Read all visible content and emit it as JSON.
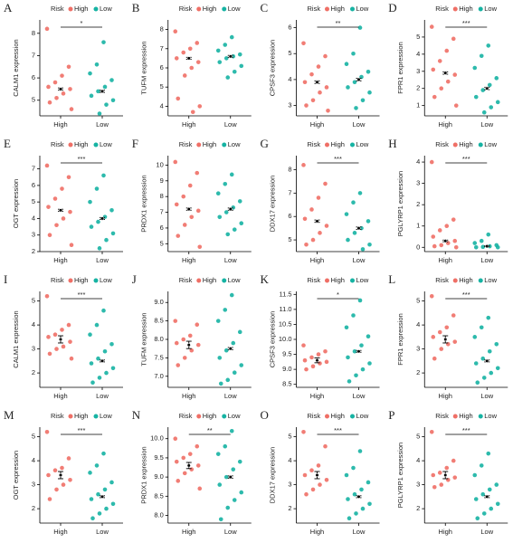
{
  "chart_data": [
    {
      "type": "strip",
      "panel": "A",
      "y_label": "CALM1 expression",
      "legend_title": "Risk",
      "categories": [
        "High",
        "Low"
      ],
      "significance": "*",
      "ylim": [
        4.3,
        8.6
      ],
      "yticks": [
        5,
        6,
        7,
        8
      ],
      "series": [
        {
          "name": "High",
          "color": "#ef6f66",
          "values": [
            8.2,
            6.5,
            6.1,
            5.8,
            5.6,
            5.5,
            5.3,
            5.1,
            4.9,
            4.6
          ],
          "mean": 5.5,
          "error": 0.05
        },
        {
          "name": "Low",
          "color": "#16b3a3",
          "values": [
            7.6,
            6.6,
            6.2,
            5.9,
            5.6,
            5.4,
            5.2,
            5.0,
            4.8,
            4.4
          ],
          "mean": 5.4,
          "error": 0.05
        }
      ]
    },
    {
      "type": "strip",
      "panel": "B",
      "y_label": "TUFM expression",
      "legend_title": "Risk",
      "categories": [
        "High",
        "Low"
      ],
      "ylim": [
        3.5,
        8.5
      ],
      "yticks": [
        4,
        5,
        6,
        7,
        8
      ],
      "series": [
        {
          "name": "High",
          "color": "#ef6f66",
          "values": [
            7.9,
            7.3,
            7.0,
            6.8,
            6.5,
            6.3,
            6.0,
            5.6,
            4.4,
            4.0,
            3.7
          ],
          "mean": 6.5,
          "error": 0.05
        },
        {
          "name": "Low",
          "color": "#16b3a3",
          "values": [
            7.6,
            7.2,
            6.9,
            6.7,
            6.6,
            6.5,
            6.3,
            6.1,
            5.8,
            5.5
          ],
          "mean": 6.6,
          "error": 0.05
        }
      ]
    },
    {
      "type": "strip",
      "panel": "C",
      "y_label": "CPSF3 expression",
      "legend_title": "Risk",
      "categories": [
        "High",
        "Low"
      ],
      "significance": "**",
      "ylim": [
        2.6,
        6.3
      ],
      "yticks": [
        3,
        4,
        5,
        6
      ],
      "series": [
        {
          "name": "High",
          "color": "#ef6f66",
          "values": [
            5.4,
            4.9,
            4.5,
            4.2,
            3.9,
            3.7,
            3.5,
            3.2,
            3.0,
            2.8
          ],
          "mean": 3.9,
          "error": 0.05
        },
        {
          "name": "Low",
          "color": "#16b3a3",
          "values": [
            6.0,
            5.0,
            4.6,
            4.3,
            4.1,
            3.9,
            3.7,
            3.5,
            3.2,
            2.9
          ],
          "mean": 4.0,
          "error": 0.05
        }
      ]
    },
    {
      "type": "strip",
      "panel": "D",
      "y_label": "FPR1 expression",
      "legend_title": "Risk",
      "categories": [
        "High",
        "Low"
      ],
      "significance": "***",
      "ylim": [
        0.4,
        6
      ],
      "yticks": [
        1,
        2,
        3,
        4,
        5
      ],
      "series": [
        {
          "name": "High",
          "color": "#ef6f66",
          "values": [
            5.6,
            4.9,
            4.2,
            3.6,
            3.1,
            2.8,
            2.4,
            2.0,
            1.5,
            1.0
          ],
          "mean": 2.9,
          "error": 0.07
        },
        {
          "name": "Low",
          "color": "#16b3a3",
          "values": [
            4.5,
            3.9,
            3.2,
            2.6,
            2.2,
            1.9,
            1.5,
            1.2,
            0.9,
            0.6
          ],
          "mean": 2.0,
          "error": 0.07
        }
      ]
    },
    {
      "type": "strip",
      "panel": "E",
      "y_label": "OGT expression",
      "legend_title": "Risk",
      "categories": [
        "High",
        "Low"
      ],
      "significance": "***",
      "ylim": [
        2,
        7.8
      ],
      "yticks": [
        2,
        3,
        4,
        5,
        6,
        7
      ],
      "series": [
        {
          "name": "High",
          "color": "#ef6f66",
          "values": [
            7.2,
            6.5,
            5.8,
            5.2,
            4.7,
            4.4,
            4.0,
            3.6,
            3.0,
            2.4
          ],
          "mean": 4.5,
          "error": 0.06
        },
        {
          "name": "Low",
          "color": "#16b3a3",
          "values": [
            6.6,
            5.8,
            5.0,
            4.5,
            4.1,
            3.8,
            3.5,
            3.1,
            2.7,
            2.2
          ],
          "mean": 4.0,
          "error": 0.06
        }
      ]
    },
    {
      "type": "strip",
      "panel": "F",
      "y_label": "PRDX1 expression",
      "legend_title": "Risk",
      "categories": [
        "High",
        "Low"
      ],
      "ylim": [
        4.5,
        10.6
      ],
      "yticks": [
        5,
        6,
        7,
        8,
        9,
        10
      ],
      "series": [
        {
          "name": "High",
          "color": "#ef6f66",
          "values": [
            10.2,
            9.5,
            8.7,
            8.0,
            7.5,
            7.1,
            6.7,
            6.2,
            5.5,
            4.8
          ],
          "mean": 7.2,
          "error": 0.07
        },
        {
          "name": "Low",
          "color": "#16b3a3",
          "values": [
            9.4,
            8.8,
            8.2,
            7.7,
            7.3,
            7.0,
            6.7,
            6.3,
            5.9,
            5.6
          ],
          "mean": 7.2,
          "error": 0.07
        }
      ]
    },
    {
      "type": "strip",
      "panel": "G",
      "y_label": "DDX17 expression",
      "legend_title": "Risk",
      "categories": [
        "High",
        "Low"
      ],
      "significance": "***",
      "ylim": [
        4.5,
        8.6
      ],
      "yticks": [
        5,
        6,
        7,
        8
      ],
      "series": [
        {
          "name": "High",
          "color": "#ef6f66",
          "values": [
            8.2,
            7.4,
            6.8,
            6.3,
            5.9,
            5.6,
            5.3,
            5.0,
            4.8
          ],
          "mean": 5.8,
          "error": 0.05
        },
        {
          "name": "Low",
          "color": "#16b3a3",
          "values": [
            7.0,
            6.6,
            6.1,
            5.8,
            5.5,
            5.3,
            5.0,
            4.8,
            4.6
          ],
          "mean": 5.5,
          "error": 0.05
        }
      ]
    },
    {
      "type": "strip",
      "panel": "H",
      "y_label": "PGLYRP1 expression",
      "legend_title": "Risk",
      "categories": [
        "High",
        "Low"
      ],
      "significance": "***",
      "ylim": [
        -0.2,
        4.3
      ],
      "yticks": [
        0,
        1,
        2,
        3,
        4
      ],
      "series": [
        {
          "name": "High",
          "color": "#ef6f66",
          "values": [
            4.0,
            1.3,
            1.0,
            0.8,
            0.5,
            0.3,
            0.2,
            0.1,
            0.05,
            0.0
          ],
          "mean": 0.3,
          "error": 0.04
        },
        {
          "name": "Low",
          "color": "#16b3a3",
          "values": [
            0.6,
            0.3,
            0.2,
            0.1,
            0.05,
            0.02,
            0.0,
            0.0
          ],
          "mean": 0.05,
          "error": 0.02
        }
      ]
    },
    {
      "type": "strip",
      "panel": "I",
      "y_label": "CALM1 expression",
      "legend_title": "Risk",
      "categories": [
        "High",
        "Low"
      ],
      "significance": "***",
      "ylim": [
        1.4,
        5.4
      ],
      "yticks": [
        2,
        3,
        4,
        5
      ],
      "series": [
        {
          "name": "High",
          "color": "#ef6f66",
          "values": [
            5.2,
            4.0,
            3.8,
            3.6,
            3.5,
            3.3,
            3.1,
            3.0,
            2.8,
            2.6
          ],
          "mean": 3.4,
          "error": 0.15
        },
        {
          "name": "Low",
          "color": "#16b3a3",
          "values": [
            4.6,
            4.0,
            3.6,
            3.2,
            2.9,
            2.6,
            2.4,
            2.2,
            2.0,
            1.8,
            1.6
          ],
          "mean": 2.5,
          "error": 0.04
        }
      ]
    },
    {
      "type": "strip",
      "panel": "J",
      "y_label": "TUFM expression",
      "legend_title": "Risk",
      "categories": [
        "High",
        "Low"
      ],
      "ylim": [
        6.7,
        9.3
      ],
      "yticks": [
        {
          "value": 7,
          "label": "7.0"
        },
        7.5,
        {
          "value": 8,
          "label": "8.0"
        },
        8.5,
        {
          "value": 9,
          "label": "9.0"
        }
      ],
      "series": [
        {
          "name": "High",
          "color": "#ef6f66",
          "values": [
            8.5,
            8.4,
            8.1,
            8.0,
            7.9,
            7.85,
            7.7,
            7.5,
            7.3
          ],
          "mean": 7.85,
          "error": 0.1
        },
        {
          "name": "Low",
          "color": "#16b3a3",
          "values": [
            9.2,
            8.8,
            8.5,
            8.2,
            7.9,
            7.7,
            7.5,
            7.3,
            7.1,
            6.9,
            6.8
          ],
          "mean": 7.75,
          "error": 0.03
        }
      ]
    },
    {
      "type": "strip",
      "panel": "K",
      "y_label": "CPSF3 expression",
      "legend_title": "Risk",
      "categories": [
        "High",
        "Low"
      ],
      "significance": "*",
      "ylim": [
        8.4,
        11.6
      ],
      "yticks": [
        8.5,
        {
          "value": 9,
          "label": "9.0"
        },
        9.5,
        {
          "value": 10,
          "label": "10.0"
        },
        10.5,
        {
          "value": 11,
          "label": "11.0"
        },
        11.5
      ],
      "series": [
        {
          "name": "High",
          "color": "#ef6f66",
          "values": [
            9.8,
            9.6,
            9.5,
            9.4,
            9.3,
            9.25,
            9.2,
            9.1,
            9.0
          ],
          "mean": 9.3,
          "error": 0.08
        },
        {
          "name": "Low",
          "color": "#16b3a3",
          "values": [
            11.3,
            10.8,
            10.4,
            10.1,
            9.8,
            9.6,
            9.4,
            9.2,
            9.0,
            8.8,
            8.6
          ],
          "mean": 9.6,
          "error": 0.03
        }
      ]
    },
    {
      "type": "strip",
      "panel": "L",
      "y_label": "FPR1 expression",
      "legend_title": "Risk",
      "categories": [
        "High",
        "Low"
      ],
      "significance": "***",
      "ylim": [
        1.4,
        5.4
      ],
      "yticks": [
        2,
        3,
        4,
        5
      ],
      "series": [
        {
          "name": "High",
          "color": "#ef6f66",
          "values": [
            5.2,
            4.4,
            3.9,
            3.7,
            3.5,
            3.3,
            3.2,
            3.0,
            2.6
          ],
          "mean": 3.4,
          "error": 0.15
        },
        {
          "name": "Low",
          "color": "#16b3a3",
          "values": [
            4.3,
            3.9,
            3.5,
            3.2,
            2.9,
            2.6,
            2.4,
            2.2,
            2.0,
            1.8,
            1.6
          ],
          "mean": 2.5,
          "error": 0.04
        }
      ]
    },
    {
      "type": "strip",
      "panel": "M",
      "y_label": "OGT expression",
      "legend_title": "Risk",
      "categories": [
        "High",
        "Low"
      ],
      "significance": "***",
      "ylim": [
        1.4,
        5.4
      ],
      "yticks": [
        2,
        3,
        4,
        5
      ],
      "series": [
        {
          "name": "High",
          "color": "#ef6f66",
          "values": [
            5.2,
            4.1,
            3.7,
            3.6,
            3.4,
            3.2,
            3.0,
            2.8,
            2.4
          ],
          "mean": 3.4,
          "error": 0.15
        },
        {
          "name": "Low",
          "color": "#16b3a3",
          "values": [
            4.3,
            3.8,
            3.5,
            3.1,
            2.8,
            2.6,
            2.4,
            2.2,
            2.0,
            1.8,
            1.6
          ],
          "mean": 2.5,
          "error": 0.04
        }
      ]
    },
    {
      "type": "strip",
      "panel": "N",
      "y_label": "PRDX1 expression",
      "legend_title": "Risk",
      "categories": [
        "High",
        "Low"
      ],
      "significance": "**",
      "ylim": [
        7.8,
        10.3
      ],
      "yticks": [
        {
          "value": 8,
          "label": "8.0"
        },
        8.5,
        {
          "value": 9,
          "label": "9.0"
        },
        9.5,
        {
          "value": 10,
          "label": "10.0"
        }
      ],
      "series": [
        {
          "name": "High",
          "color": "#ef6f66",
          "values": [
            10.0,
            9.8,
            9.6,
            9.5,
            9.4,
            9.3,
            9.2,
            9.1,
            8.9,
            8.7
          ],
          "mean": 9.3,
          "error": 0.08
        },
        {
          "name": "Low",
          "color": "#16b3a3",
          "values": [
            10.2,
            9.8,
            9.6,
            9.4,
            9.2,
            9.0,
            8.8,
            8.6,
            8.4,
            8.2,
            7.9
          ],
          "mean": 9.0,
          "error": 0.03
        }
      ]
    },
    {
      "type": "strip",
      "panel": "O",
      "y_label": "DDX17 expression",
      "legend_title": "Risk",
      "categories": [
        "High",
        "Low"
      ],
      "significance": "***",
      "ylim": [
        1.4,
        5.4
      ],
      "yticks": [
        2,
        3,
        4,
        5
      ],
      "series": [
        {
          "name": "High",
          "color": "#ef6f66",
          "values": [
            5.2,
            4.6,
            3.8,
            3.6,
            3.4,
            3.2,
            3.0,
            2.8,
            2.6
          ],
          "mean": 3.4,
          "error": 0.15
        },
        {
          "name": "Low",
          "color": "#16b3a3",
          "values": [
            4.4,
            3.7,
            3.4,
            3.1,
            2.8,
            2.6,
            2.4,
            2.2,
            2.0,
            1.8,
            1.6
          ],
          "mean": 2.5,
          "error": 0.04
        }
      ]
    },
    {
      "type": "strip",
      "panel": "P",
      "y_label": "PGLYRP1 expression",
      "legend_title": "Risk",
      "categories": [
        "High",
        "Low"
      ],
      "significance": "***",
      "ylim": [
        1.4,
        5.4
      ],
      "yticks": [
        2,
        3,
        4,
        5
      ],
      "series": [
        {
          "name": "High",
          "color": "#ef6f66",
          "values": [
            5.2,
            4.0,
            3.7,
            3.5,
            3.4,
            3.3,
            3.2,
            3.0,
            2.9
          ],
          "mean": 3.4,
          "error": 0.15
        },
        {
          "name": "Low",
          "color": "#16b3a3",
          "values": [
            4.3,
            3.8,
            3.4,
            3.0,
            2.8,
            2.6,
            2.4,
            2.2,
            2.0,
            1.8,
            1.6
          ],
          "mean": 2.5,
          "error": 0.04
        }
      ]
    }
  ]
}
